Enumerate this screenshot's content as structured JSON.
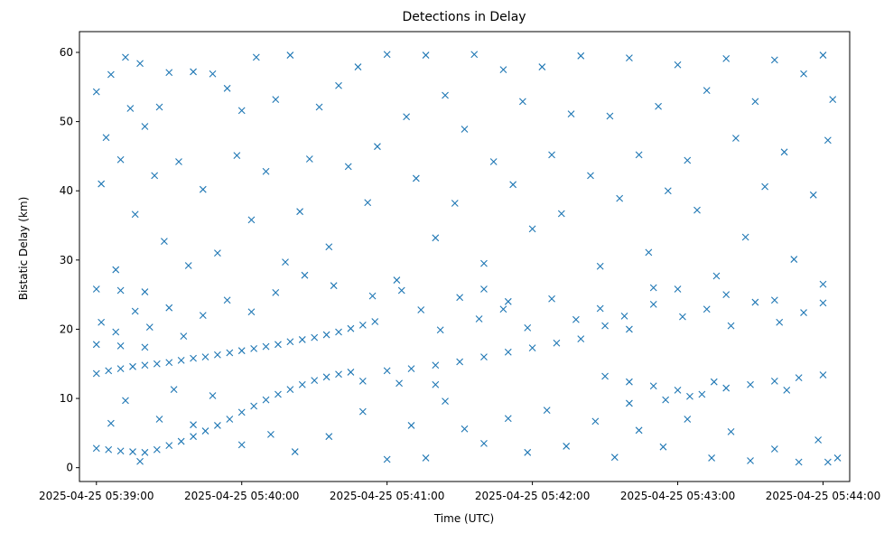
{
  "chart_data": {
    "type": "scatter",
    "title": "Detections in Delay",
    "xlabel": "Time (UTC)",
    "ylabel": "Bistatic Delay (km)",
    "x_unit": "datetime",
    "xlim": [
      "2025-04-25 05:38:53",
      "2025-04-25 05:44:11"
    ],
    "ylim": [
      -2,
      63
    ],
    "x_ticks": [
      "2025-04-25 05:39:00",
      "2025-04-25 05:40:00",
      "2025-04-25 05:41:00",
      "2025-04-25 05:42:00",
      "2025-04-25 05:43:00",
      "2025-04-25 05:44:00"
    ],
    "y_ticks": [
      0,
      10,
      20,
      30,
      40,
      50,
      60
    ],
    "marker": "x",
    "color": "#1f77b4",
    "grid": false,
    "series": [
      {
        "points": [
          [
            "2025-04-25 05:39:00",
            13.6
          ],
          [
            "2025-04-25 05:39:05",
            14.0
          ],
          [
            "2025-04-25 05:39:10",
            14.3
          ],
          [
            "2025-04-25 05:39:15",
            14.6
          ],
          [
            "2025-04-25 05:39:20",
            14.8
          ],
          [
            "2025-04-25 05:39:25",
            15.0
          ],
          [
            "2025-04-25 05:39:30",
            15.2
          ],
          [
            "2025-04-25 05:39:35",
            15.5
          ],
          [
            "2025-04-25 05:39:40",
            15.8
          ],
          [
            "2025-04-25 05:39:45",
            16.0
          ],
          [
            "2025-04-25 05:39:50",
            16.3
          ],
          [
            "2025-04-25 05:39:55",
            16.6
          ],
          [
            "2025-04-25 05:40:00",
            16.9
          ],
          [
            "2025-04-25 05:40:05",
            17.2
          ],
          [
            "2025-04-25 05:40:10",
            17.5
          ],
          [
            "2025-04-25 05:40:15",
            17.8
          ],
          [
            "2025-04-25 05:40:20",
            18.2
          ],
          [
            "2025-04-25 05:40:25",
            18.5
          ],
          [
            "2025-04-25 05:40:30",
            18.8
          ],
          [
            "2025-04-25 05:40:35",
            19.2
          ],
          [
            "2025-04-25 05:40:40",
            19.6
          ],
          [
            "2025-04-25 05:40:45",
            20.1
          ],
          [
            "2025-04-25 05:40:50",
            20.6
          ],
          [
            "2025-04-25 05:40:55",
            21.1
          ],
          [
            "2025-04-25 05:41:00",
            14.0
          ],
          [
            "2025-04-25 05:41:10",
            14.3
          ],
          [
            "2025-04-25 05:41:20",
            14.8
          ],
          [
            "2025-04-25 05:41:30",
            15.3
          ],
          [
            "2025-04-25 05:41:40",
            16.0
          ],
          [
            "2025-04-25 05:41:50",
            16.7
          ],
          [
            "2025-04-25 05:42:00",
            17.3
          ],
          [
            "2025-04-25 05:42:10",
            18.0
          ],
          [
            "2025-04-25 05:42:20",
            18.6
          ],
          [
            "2025-04-25 05:42:30",
            13.2
          ],
          [
            "2025-04-25 05:42:40",
            12.4
          ],
          [
            "2025-04-25 05:42:50",
            11.8
          ],
          [
            "2025-04-25 05:43:00",
            11.2
          ],
          [
            "2025-04-25 05:43:10",
            10.6
          ],
          [
            "2025-04-25 05:43:20",
            11.5
          ],
          [
            "2025-04-25 05:43:30",
            12.0
          ],
          [
            "2025-04-25 05:43:40",
            12.5
          ],
          [
            "2025-04-25 05:43:50",
            13.0
          ],
          [
            "2025-04-25 05:44:00",
            13.4
          ],
          [
            "2025-04-25 05:39:00",
            2.8
          ],
          [
            "2025-04-25 05:39:05",
            2.6
          ],
          [
            "2025-04-25 05:39:10",
            2.4
          ],
          [
            "2025-04-25 05:39:15",
            2.3
          ],
          [
            "2025-04-25 05:39:20",
            2.2
          ],
          [
            "2025-04-25 05:39:25",
            2.6
          ],
          [
            "2025-04-25 05:39:30",
            3.2
          ],
          [
            "2025-04-25 05:39:35",
            3.8
          ],
          [
            "2025-04-25 05:39:40",
            4.5
          ],
          [
            "2025-04-25 05:39:45",
            5.3
          ],
          [
            "2025-04-25 05:39:50",
            6.1
          ],
          [
            "2025-04-25 05:39:55",
            7.0
          ],
          [
            "2025-04-25 05:40:00",
            8.0
          ],
          [
            "2025-04-25 05:40:05",
            8.9
          ],
          [
            "2025-04-25 05:40:10",
            9.8
          ],
          [
            "2025-04-25 05:40:15",
            10.6
          ],
          [
            "2025-04-25 05:40:20",
            11.3
          ],
          [
            "2025-04-25 05:40:25",
            12.0
          ],
          [
            "2025-04-25 05:40:30",
            12.6
          ],
          [
            "2025-04-25 05:40:35",
            13.1
          ],
          [
            "2025-04-25 05:40:40",
            13.5
          ],
          [
            "2025-04-25 05:40:45",
            13.8
          ],
          [
            "2025-04-25 05:40:50",
            12.5
          ],
          [
            "2025-04-25 05:41:05",
            12.2
          ],
          [
            "2025-04-25 05:41:20",
            12.0
          ],
          [
            "2025-04-25 05:39:00",
            25.8
          ],
          [
            "2025-04-25 05:39:10",
            25.6
          ],
          [
            "2025-04-25 05:39:20",
            25.4
          ],
          [
            "2025-04-25 05:39:00",
            17.8
          ],
          [
            "2025-04-25 05:39:10",
            17.6
          ],
          [
            "2025-04-25 05:39:20",
            17.4
          ],
          [
            "2025-04-25 05:41:40",
            25.8
          ],
          [
            "2025-04-25 05:41:50",
            24.0
          ],
          [
            "2025-04-25 05:42:30",
            20.5
          ],
          [
            "2025-04-25 05:42:40",
            20.0
          ],
          [
            "2025-04-25 05:42:50",
            26.0
          ],
          [
            "2025-04-25 05:43:00",
            25.8
          ],
          [
            "2025-04-25 05:43:20",
            25.0
          ],
          [
            "2025-04-25 05:43:40",
            24.2
          ],
          [
            "2025-04-25 05:44:00",
            26.5
          ],
          [
            "2025-04-25 05:42:40",
            9.3
          ],
          [
            "2025-04-25 05:42:55",
            9.8
          ],
          [
            "2025-04-25 05:43:05",
            10.3
          ],
          [
            "2025-04-25 05:43:15",
            12.4
          ],
          [
            "2025-04-25 05:43:45",
            11.2
          ],
          [
            "2025-04-25 05:39:00",
            54.3
          ],
          [
            "2025-04-25 05:39:02",
            41.0
          ],
          [
            "2025-04-25 05:39:04",
            47.7
          ],
          [
            "2025-04-25 05:39:06",
            56.8
          ],
          [
            "2025-04-25 05:39:08",
            28.6
          ],
          [
            "2025-04-25 05:39:10",
            44.5
          ],
          [
            "2025-04-25 05:39:12",
            59.3
          ],
          [
            "2025-04-25 05:39:14",
            51.9
          ],
          [
            "2025-04-25 05:39:16",
            36.6
          ],
          [
            "2025-04-25 05:39:18",
            58.4
          ],
          [
            "2025-04-25 05:39:20",
            49.3
          ],
          [
            "2025-04-25 05:39:24",
            42.2
          ],
          [
            "2025-04-25 05:39:26",
            52.1
          ],
          [
            "2025-04-25 05:39:28",
            32.7
          ],
          [
            "2025-04-25 05:39:30",
            57.1
          ],
          [
            "2025-04-25 05:39:34",
            44.2
          ],
          [
            "2025-04-25 05:39:38",
            29.2
          ],
          [
            "2025-04-25 05:39:40",
            57.2
          ],
          [
            "2025-04-25 05:39:44",
            40.2
          ],
          [
            "2025-04-25 05:39:48",
            56.9
          ],
          [
            "2025-04-25 05:39:50",
            31.0
          ],
          [
            "2025-04-25 05:39:54",
            54.8
          ],
          [
            "2025-04-25 05:39:58",
            45.1
          ],
          [
            "2025-04-25 05:40:00",
            51.6
          ],
          [
            "2025-04-25 05:40:04",
            35.8
          ],
          [
            "2025-04-25 05:40:06",
            59.3
          ],
          [
            "2025-04-25 05:40:10",
            42.8
          ],
          [
            "2025-04-25 05:40:14",
            53.2
          ],
          [
            "2025-04-25 05:40:18",
            29.7
          ],
          [
            "2025-04-25 05:40:20",
            59.6
          ],
          [
            "2025-04-25 05:40:24",
            37.0
          ],
          [
            "2025-04-25 05:40:28",
            44.6
          ],
          [
            "2025-04-25 05:40:32",
            52.1
          ],
          [
            "2025-04-25 05:40:36",
            31.9
          ],
          [
            "2025-04-25 05:40:40",
            55.2
          ],
          [
            "2025-04-25 05:40:44",
            43.5
          ],
          [
            "2025-04-25 05:40:48",
            57.9
          ],
          [
            "2025-04-25 05:40:52",
            38.3
          ],
          [
            "2025-04-25 05:40:56",
            46.4
          ],
          [
            "2025-04-25 05:41:00",
            59.7
          ],
          [
            "2025-04-25 05:41:04",
            27.1
          ],
          [
            "2025-04-25 05:41:08",
            50.7
          ],
          [
            "2025-04-25 05:41:12",
            41.8
          ],
          [
            "2025-04-25 05:41:16",
            59.6
          ],
          [
            "2025-04-25 05:41:20",
            33.2
          ],
          [
            "2025-04-25 05:41:24",
            53.8
          ],
          [
            "2025-04-25 05:41:28",
            38.2
          ],
          [
            "2025-04-25 05:41:32",
            48.9
          ],
          [
            "2025-04-25 05:41:36",
            59.7
          ],
          [
            "2025-04-25 05:41:40",
            29.5
          ],
          [
            "2025-04-25 05:41:44",
            44.2
          ],
          [
            "2025-04-25 05:41:48",
            57.5
          ],
          [
            "2025-04-25 05:41:52",
            40.9
          ],
          [
            "2025-04-25 05:41:56",
            52.9
          ],
          [
            "2025-04-25 05:42:00",
            34.5
          ],
          [
            "2025-04-25 05:42:04",
            57.9
          ],
          [
            "2025-04-25 05:42:08",
            45.2
          ],
          [
            "2025-04-25 05:42:12",
            36.7
          ],
          [
            "2025-04-25 05:42:16",
            51.1
          ],
          [
            "2025-04-25 05:42:20",
            59.5
          ],
          [
            "2025-04-25 05:42:24",
            42.2
          ],
          [
            "2025-04-25 05:42:28",
            29.1
          ],
          [
            "2025-04-25 05:42:32",
            50.8
          ],
          [
            "2025-04-25 05:42:36",
            38.9
          ],
          [
            "2025-04-25 05:42:40",
            59.2
          ],
          [
            "2025-04-25 05:42:44",
            45.2
          ],
          [
            "2025-04-25 05:42:48",
            31.1
          ],
          [
            "2025-04-25 05:42:52",
            52.2
          ],
          [
            "2025-04-25 05:42:56",
            40.0
          ],
          [
            "2025-04-25 05:43:00",
            58.2
          ],
          [
            "2025-04-25 05:43:04",
            44.4
          ],
          [
            "2025-04-25 05:43:08",
            37.2
          ],
          [
            "2025-04-25 05:43:12",
            54.5
          ],
          [
            "2025-04-25 05:43:16",
            27.7
          ],
          [
            "2025-04-25 05:43:20",
            59.1
          ],
          [
            "2025-04-25 05:43:24",
            47.6
          ],
          [
            "2025-04-25 05:43:28",
            33.3
          ],
          [
            "2025-04-25 05:43:32",
            52.9
          ],
          [
            "2025-04-25 05:43:36",
            40.6
          ],
          [
            "2025-04-25 05:43:40",
            58.9
          ],
          [
            "2025-04-25 05:43:44",
            45.6
          ],
          [
            "2025-04-25 05:43:48",
            30.1
          ],
          [
            "2025-04-25 05:43:52",
            56.9
          ],
          [
            "2025-04-25 05:43:56",
            39.4
          ],
          [
            "2025-04-25 05:44:00",
            59.6
          ],
          [
            "2025-04-25 05:44:02",
            47.3
          ],
          [
            "2025-04-25 05:44:04",
            53.2
          ],
          [
            "2025-04-25 05:39:06",
            6.4
          ],
          [
            "2025-04-25 05:39:12",
            9.7
          ],
          [
            "2025-04-25 05:39:18",
            0.9
          ],
          [
            "2025-04-25 05:39:26",
            7.0
          ],
          [
            "2025-04-25 05:39:32",
            11.3
          ],
          [
            "2025-04-25 05:39:40",
            6.2
          ],
          [
            "2025-04-25 05:39:48",
            10.4
          ],
          [
            "2025-04-25 05:40:00",
            3.3
          ],
          [
            "2025-04-25 05:40:12",
            4.8
          ],
          [
            "2025-04-25 05:40:22",
            2.3
          ],
          [
            "2025-04-25 05:40:36",
            4.5
          ],
          [
            "2025-04-25 05:40:50",
            8.1
          ],
          [
            "2025-04-25 05:41:00",
            1.2
          ],
          [
            "2025-04-25 05:41:10",
            6.1
          ],
          [
            "2025-04-25 05:41:16",
            1.4
          ],
          [
            "2025-04-25 05:41:24",
            9.6
          ],
          [
            "2025-04-25 05:41:32",
            5.6
          ],
          [
            "2025-04-25 05:41:40",
            3.5
          ],
          [
            "2025-04-25 05:41:50",
            7.1
          ],
          [
            "2025-04-25 05:41:58",
            2.2
          ],
          [
            "2025-04-25 05:42:06",
            8.3
          ],
          [
            "2025-04-25 05:42:14",
            3.1
          ],
          [
            "2025-04-25 05:42:26",
            6.7
          ],
          [
            "2025-04-25 05:42:34",
            1.5
          ],
          [
            "2025-04-25 05:42:44",
            5.4
          ],
          [
            "2025-04-25 05:42:54",
            3.0
          ],
          [
            "2025-04-25 05:43:04",
            7.0
          ],
          [
            "2025-04-25 05:43:14",
            1.4
          ],
          [
            "2025-04-25 05:43:22",
            5.2
          ],
          [
            "2025-04-25 05:43:30",
            1.0
          ],
          [
            "2025-04-25 05:43:40",
            2.7
          ],
          [
            "2025-04-25 05:43:50",
            0.8
          ],
          [
            "2025-04-25 05:43:58",
            4.0
          ],
          [
            "2025-04-25 05:44:02",
            0.8
          ],
          [
            "2025-04-25 05:44:06",
            1.4
          ],
          [
            "2025-04-25 05:39:02",
            21.0
          ],
          [
            "2025-04-25 05:39:08",
            19.6
          ],
          [
            "2025-04-25 05:39:16",
            22.6
          ],
          [
            "2025-04-25 05:39:22",
            20.3
          ],
          [
            "2025-04-25 05:39:30",
            23.1
          ],
          [
            "2025-04-25 05:39:36",
            19.0
          ],
          [
            "2025-04-25 05:39:44",
            22.0
          ],
          [
            "2025-04-25 05:39:54",
            24.2
          ],
          [
            "2025-04-25 05:40:04",
            22.5
          ],
          [
            "2025-04-25 05:40:14",
            25.3
          ],
          [
            "2025-04-25 05:40:26",
            27.8
          ],
          [
            "2025-04-25 05:40:38",
            26.3
          ],
          [
            "2025-04-25 05:40:54",
            24.8
          ],
          [
            "2025-04-25 05:41:06",
            25.6
          ],
          [
            "2025-04-25 05:41:14",
            22.8
          ],
          [
            "2025-04-25 05:41:22",
            19.9
          ],
          [
            "2025-04-25 05:41:30",
            24.6
          ],
          [
            "2025-04-25 05:41:38",
            21.5
          ],
          [
            "2025-04-25 05:41:48",
            22.9
          ],
          [
            "2025-04-25 05:41:58",
            20.2
          ],
          [
            "2025-04-25 05:42:08",
            24.4
          ],
          [
            "2025-04-25 05:42:18",
            21.4
          ],
          [
            "2025-04-25 05:42:28",
            23.0
          ],
          [
            "2025-04-25 05:42:38",
            21.9
          ],
          [
            "2025-04-25 05:42:50",
            23.6
          ],
          [
            "2025-04-25 05:43:02",
            21.8
          ],
          [
            "2025-04-25 05:43:12",
            22.9
          ],
          [
            "2025-04-25 05:43:22",
            20.5
          ],
          [
            "2025-04-25 05:43:32",
            23.9
          ],
          [
            "2025-04-25 05:43:42",
            21.0
          ],
          [
            "2025-04-25 05:43:52",
            22.4
          ],
          [
            "2025-04-25 05:44:00",
            23.8
          ]
        ]
      }
    ]
  }
}
